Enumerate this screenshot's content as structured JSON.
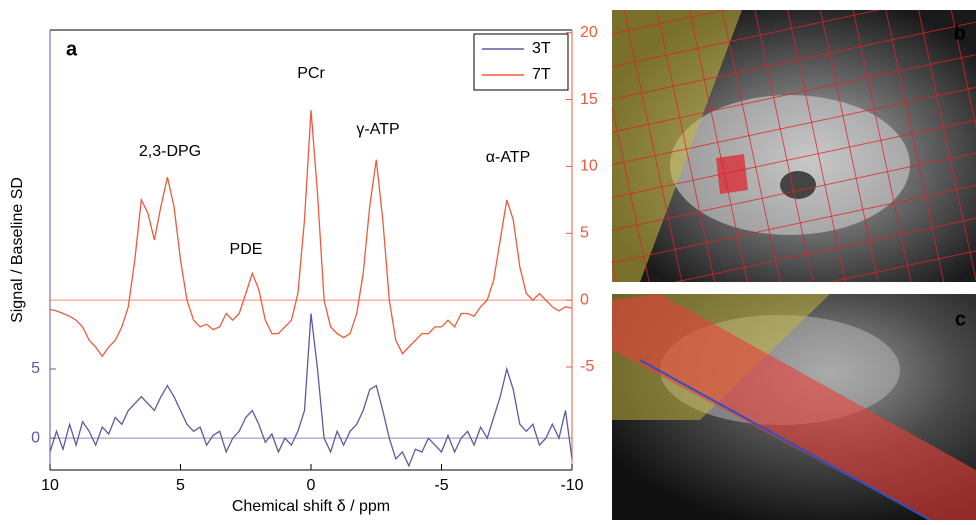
{
  "chart_data": {
    "type": "line",
    "x_label": "Chemical shift δ / ppm",
    "y_label": "Signal / Baseline SD",
    "panel_label": "a",
    "annotations": [
      "2,3-DPG",
      "PDE",
      "PCr",
      "γ-ATP",
      "α-ATP"
    ],
    "x": [
      10,
      9.75,
      9.5,
      9.25,
      9,
      8.75,
      8.5,
      8.25,
      8,
      7.75,
      7.5,
      7.25,
      7,
      6.75,
      6.5,
      6.25,
      6,
      5.75,
      5.5,
      5.25,
      5,
      4.75,
      4.5,
      4.25,
      4,
      3.75,
      3.5,
      3.25,
      3,
      2.75,
      2.5,
      2.25,
      2,
      1.75,
      1.5,
      1.25,
      1,
      0.75,
      0.5,
      0.25,
      0,
      -0.25,
      -0.5,
      -0.75,
      -1,
      -1.25,
      -1.5,
      -1.75,
      -2,
      -2.25,
      -2.5,
      -2.75,
      -3,
      -3.25,
      -3.5,
      -3.75,
      -4,
      -4.25,
      -4.5,
      -4.75,
      -5,
      -5.25,
      -5.5,
      -5.75,
      -6,
      -6.25,
      -6.5,
      -6.75,
      -7,
      -7.25,
      -7.5,
      -7.75,
      -8,
      -8.25,
      -8.5,
      -8.75,
      -9,
      -9.25,
      -9.5,
      -9.75,
      -10
    ],
    "series": [
      {
        "name": "3T",
        "color": "#5b5ba3",
        "axis": "y",
        "values": [
          -1,
          0.5,
          -0.8,
          1,
          -0.5,
          1.2,
          0.5,
          -0.5,
          0.8,
          0.3,
          1.5,
          1,
          2,
          2.5,
          3,
          2.5,
          2,
          3,
          3.8,
          3,
          2,
          1,
          0.5,
          0.8,
          -0.5,
          0.2,
          0.5,
          -1,
          0,
          0.5,
          1.5,
          2,
          1,
          -0.3,
          0.3,
          -1,
          0,
          -0.5,
          0.5,
          2,
          9,
          5,
          0,
          -1,
          0.5,
          -0.5,
          0.5,
          1,
          2,
          3.5,
          3.8,
          2,
          0,
          -1.5,
          -1,
          -2,
          -0.8,
          -1,
          0,
          -0.5,
          -1,
          0.2,
          -1,
          0,
          0.5,
          -0.5,
          0.8,
          0,
          1.5,
          3,
          5,
          3.5,
          1,
          0.5,
          1,
          -0.5,
          0,
          1,
          0,
          2,
          -1.5
        ]
      },
      {
        "name": "7T",
        "color": "#ef5a3c",
        "axis": "y2",
        "values": [
          -0.7,
          -0.8,
          -1,
          -1.2,
          -1.5,
          -2,
          -3,
          -3.5,
          -4.2,
          -3.5,
          -3,
          -2,
          -0.5,
          3,
          7.5,
          6.5,
          4.5,
          7,
          9.2,
          7,
          3,
          0,
          -1.5,
          -2,
          -1.8,
          -2.2,
          -2,
          -1,
          -1.5,
          -1,
          0.5,
          2,
          0.8,
          -1.5,
          -2.5,
          -2.5,
          -2,
          -1.5,
          0.5,
          6,
          14.2,
          8,
          0,
          -2,
          -2.5,
          -2.8,
          -2.5,
          -1,
          2,
          7,
          10.5,
          6,
          0,
          -3,
          -4,
          -3.5,
          -3,
          -2.5,
          -2.5,
          -2,
          -2,
          -1.5,
          -2,
          -1,
          -1,
          -1.2,
          -0.5,
          0,
          1.5,
          4.5,
          7.5,
          6,
          2.5,
          0.5,
          0,
          0.5,
          0,
          -0.5,
          -0.8,
          -0.5,
          -0.6
        ]
      }
    ],
    "xlim": [
      10,
      -10
    ],
    "xticks": [
      10,
      5,
      0,
      -5,
      -10
    ],
    "ylim": [
      -2.3,
      29.5
    ],
    "yticks": [
      0,
      5
    ],
    "y2lim": [
      -12.7,
      20.2
    ],
    "y2ticks": [
      -5,
      0,
      5,
      10,
      15,
      20
    ],
    "legend": "upper right"
  },
  "panels": [
    {
      "label": "b"
    },
    {
      "label": "c"
    }
  ]
}
